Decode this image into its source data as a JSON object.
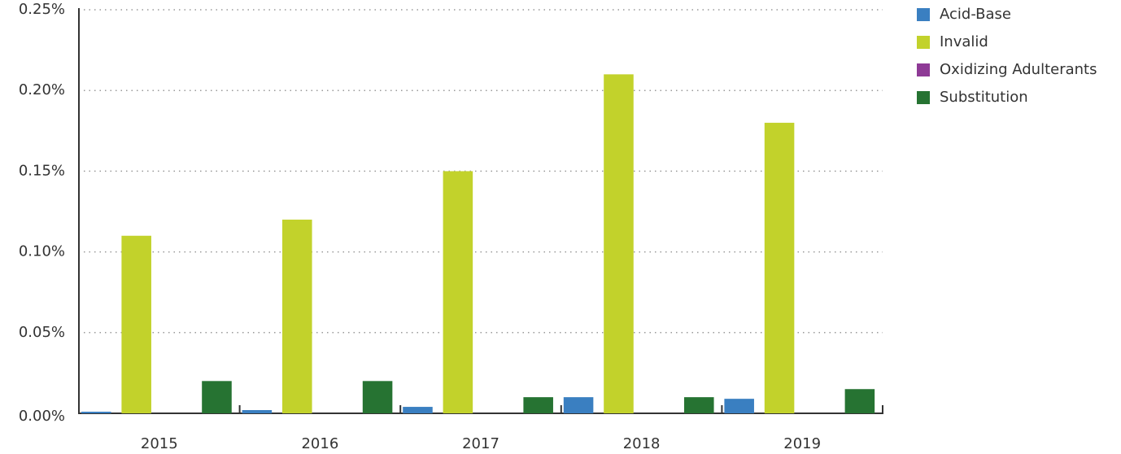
{
  "chart_data": {
    "type": "bar",
    "categories": [
      "2015",
      "2016",
      "2017",
      "2018",
      "2019"
    ],
    "series": [
      {
        "name": "Acid-Base",
        "color": "#3a7fc1",
        "values": [
          0.001,
          0.002,
          0.004,
          0.01,
          0.009
        ]
      },
      {
        "name": "Invalid",
        "color": "#c2d22b",
        "values": [
          0.11,
          0.12,
          0.15,
          0.21,
          0.18
        ]
      },
      {
        "name": "Oxidizing Adulterants",
        "color": "#8e3a96",
        "values": [
          0,
          0,
          0,
          0,
          0
        ]
      },
      {
        "name": "Substitution",
        "color": "#267332",
        "values": [
          0.02,
          0.02,
          0.01,
          0.01,
          0.015
        ]
      }
    ],
    "ylim": [
      0,
      0.25
    ],
    "yticks": [
      {
        "value": 0,
        "label": "0.00%"
      },
      {
        "value": 0.05,
        "label": "0.05%"
      },
      {
        "value": 0.1,
        "label": "0.10%"
      },
      {
        "value": 0.15,
        "label": "0.15%"
      },
      {
        "value": 0.2,
        "label": "0.20%"
      },
      {
        "value": 0.25,
        "label": "0.25%"
      }
    ],
    "grid": true,
    "legend": "top-right"
  }
}
